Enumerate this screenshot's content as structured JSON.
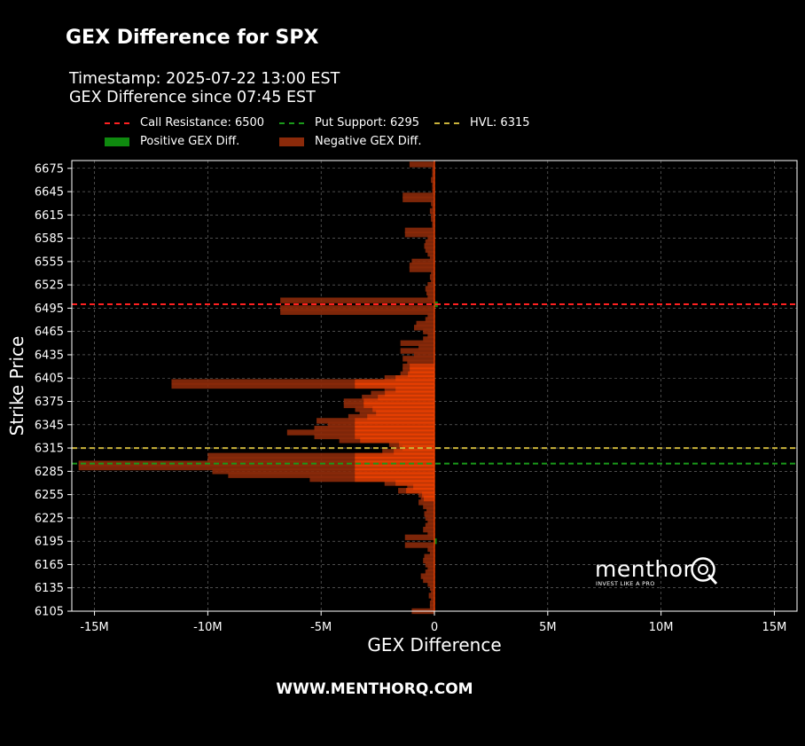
{
  "chart_data": {
    "type": "bar",
    "orientation": "horizontal",
    "title": "GEX Difference for SPX",
    "subtitle_lines": [
      "Timestamp: 2025-07-22 13:00 EST",
      "GEX Difference since 07:45 EST"
    ],
    "xlabel": "GEX Difference",
    "ylabel": "Strike Price",
    "xlim": [
      -16000000,
      16000000
    ],
    "ylim": [
      6105,
      6685
    ],
    "x_ticks": [
      -15000000,
      -10000000,
      -5000000,
      0,
      5000000,
      10000000,
      15000000
    ],
    "x_tick_labels": [
      "-15M",
      "-10M",
      "-5M",
      "0",
      "5M",
      "10M",
      "15M"
    ],
    "y_ticks": [
      6105,
      6135,
      6165,
      6195,
      6225,
      6255,
      6285,
      6315,
      6345,
      6375,
      6405,
      6435,
      6465,
      6495,
      6525,
      6555,
      6585,
      6615,
      6645,
      6675
    ],
    "grid": true,
    "legend_position": "top-left",
    "colors": {
      "positive": "#0f8a0f",
      "negative": "#8b2a0a",
      "dense_negative": "#ff4500",
      "call_resistance": "#ff2020",
      "put_support": "#1a9a1a",
      "hvl": "#c9b23a"
    },
    "reference_lines": [
      {
        "name": "Call Resistance: 6500",
        "value": 6500,
        "color": "#ff2020"
      },
      {
        "name": "Put Support: 6295",
        "value": 6295,
        "color": "#1a9a1a"
      },
      {
        "name": "HVL: 6315",
        "value": 6315,
        "color": "#c9b23a"
      }
    ],
    "legend_bars": [
      {
        "name": "Positive GEX Diff.",
        "color": "#0f8a0f"
      },
      {
        "name": "Negative GEX Diff.",
        "color": "#8b2a0a"
      }
    ],
    "bars": [
      {
        "strike": 6105,
        "value": -1000000
      },
      {
        "strike": 6110,
        "value": -200000
      },
      {
        "strike": 6115,
        "value": -200000
      },
      {
        "strike": 6120,
        "value": -150000
      },
      {
        "strike": 6125,
        "value": -250000
      },
      {
        "strike": 6130,
        "value": -150000
      },
      {
        "strike": 6135,
        "value": -200000
      },
      {
        "strike": 6140,
        "value": -300000
      },
      {
        "strike": 6145,
        "value": -500000
      },
      {
        "strike": 6150,
        "value": -600000
      },
      {
        "strike": 6155,
        "value": -400000
      },
      {
        "strike": 6160,
        "value": -300000
      },
      {
        "strike": 6165,
        "value": -400000
      },
      {
        "strike": 6170,
        "value": -500000
      },
      {
        "strike": 6175,
        "value": -450000
      },
      {
        "strike": 6180,
        "value": -200000
      },
      {
        "strike": 6185,
        "value": -300000
      },
      {
        "strike": 6190,
        "value": -1300000
      },
      {
        "strike": 6195,
        "value": 100000
      },
      {
        "strike": 6200,
        "value": -1300000
      },
      {
        "strike": 6205,
        "value": -300000
      },
      {
        "strike": 6210,
        "value": -500000
      },
      {
        "strike": 6215,
        "value": -400000
      },
      {
        "strike": 6220,
        "value": -300000
      },
      {
        "strike": 6225,
        "value": -400000
      },
      {
        "strike": 6230,
        "value": -450000
      },
      {
        "strike": 6235,
        "value": -350000
      },
      {
        "strike": 6240,
        "value": -500000
      },
      {
        "strike": 6245,
        "value": -700000
      },
      {
        "strike": 6250,
        "value": -600000
      },
      {
        "strike": 6255,
        "value": -700000
      },
      {
        "strike": 6260,
        "value": -1600000
      },
      {
        "strike": 6265,
        "value": -1200000
      },
      {
        "strike": 6270,
        "value": -2200000
      },
      {
        "strike": 6275,
        "value": -5500000
      },
      {
        "strike": 6280,
        "value": -9100000
      },
      {
        "strike": 6285,
        "value": -9800000
      },
      {
        "strike": 6290,
        "value": -15700000
      },
      {
        "strike": 6295,
        "value": -15700000
      },
      {
        "strike": 6300,
        "value": -10000000
      },
      {
        "strike": 6305,
        "value": -10000000
      },
      {
        "strike": 6310,
        "value": -2300000
      },
      {
        "strike": 6315,
        "value": -1800000
      },
      {
        "strike": 6320,
        "value": -2000000
      },
      {
        "strike": 6325,
        "value": -4200000
      },
      {
        "strike": 6330,
        "value": -5300000
      },
      {
        "strike": 6335,
        "value": -6500000
      },
      {
        "strike": 6340,
        "value": -5300000
      },
      {
        "strike": 6345,
        "value": -4700000
      },
      {
        "strike": 6350,
        "value": -5200000
      },
      {
        "strike": 6355,
        "value": -3800000
      },
      {
        "strike": 6360,
        "value": -3300000
      },
      {
        "strike": 6365,
        "value": -3500000
      },
      {
        "strike": 6370,
        "value": -4000000
      },
      {
        "strike": 6375,
        "value": -4000000
      },
      {
        "strike": 6380,
        "value": -3200000
      },
      {
        "strike": 6385,
        "value": -2800000
      },
      {
        "strike": 6390,
        "value": -2200000
      },
      {
        "strike": 6395,
        "value": -11600000
      },
      {
        "strike": 6400,
        "value": -11600000
      },
      {
        "strike": 6405,
        "value": -2200000
      },
      {
        "strike": 6410,
        "value": -1500000
      },
      {
        "strike": 6415,
        "value": -1400000
      },
      {
        "strike": 6420,
        "value": -1400000
      },
      {
        "strike": 6425,
        "value": -1200000
      },
      {
        "strike": 6430,
        "value": -1400000
      },
      {
        "strike": 6435,
        "value": -900000
      },
      {
        "strike": 6440,
        "value": -1500000
      },
      {
        "strike": 6445,
        "value": -700000
      },
      {
        "strike": 6450,
        "value": -1500000
      },
      {
        "strike": 6455,
        "value": -500000
      },
      {
        "strike": 6460,
        "value": -300000
      },
      {
        "strike": 6465,
        "value": -500000
      },
      {
        "strike": 6470,
        "value": -900000
      },
      {
        "strike": 6475,
        "value": -800000
      },
      {
        "strike": 6480,
        "value": -400000
      },
      {
        "strike": 6485,
        "value": -300000
      },
      {
        "strike": 6490,
        "value": -6800000
      },
      {
        "strike": 6495,
        "value": -6800000
      },
      {
        "strike": 6500,
        "value": 150000
      },
      {
        "strike": 6505,
        "value": -6800000
      },
      {
        "strike": 6510,
        "value": -300000
      },
      {
        "strike": 6515,
        "value": -350000
      },
      {
        "strike": 6520,
        "value": -400000
      },
      {
        "strike": 6525,
        "value": -300000
      },
      {
        "strike": 6530,
        "value": -150000
      },
      {
        "strike": 6535,
        "value": -200000
      },
      {
        "strike": 6540,
        "value": -150000
      },
      {
        "strike": 6545,
        "value": -1100000
      },
      {
        "strike": 6550,
        "value": -1100000
      },
      {
        "strike": 6555,
        "value": -1000000
      },
      {
        "strike": 6560,
        "value": -200000
      },
      {
        "strike": 6565,
        "value": -300000
      },
      {
        "strike": 6570,
        "value": -400000
      },
      {
        "strike": 6575,
        "value": -450000
      },
      {
        "strike": 6580,
        "value": -400000
      },
      {
        "strike": 6585,
        "value": -300000
      },
      {
        "strike": 6590,
        "value": -1300000
      },
      {
        "strike": 6595,
        "value": -1300000
      },
      {
        "strike": 6600,
        "value": -100000
      },
      {
        "strike": 6605,
        "value": -100000
      },
      {
        "strike": 6610,
        "value": -150000
      },
      {
        "strike": 6615,
        "value": -150000
      },
      {
        "strike": 6620,
        "value": -200000
      },
      {
        "strike": 6625,
        "value": -100000
      },
      {
        "strike": 6630,
        "value": -150000
      },
      {
        "strike": 6635,
        "value": -1400000
      },
      {
        "strike": 6640,
        "value": -1400000
      },
      {
        "strike": 6645,
        "value": -100000
      },
      {
        "strike": 6650,
        "value": -100000
      },
      {
        "strike": 6655,
        "value": -100000
      },
      {
        "strike": 6660,
        "value": -150000
      },
      {
        "strike": 6665,
        "value": -100000
      },
      {
        "strike": 6670,
        "value": -100000
      },
      {
        "strike": 6675,
        "value": -100000
      },
      {
        "strike": 6680,
        "value": -1100000
      }
    ]
  },
  "brand": {
    "name": "menthor",
    "tagline": "INVEST LIKE A PRO"
  },
  "footer": {
    "url": "WWW.MENTHORQ.COM"
  }
}
